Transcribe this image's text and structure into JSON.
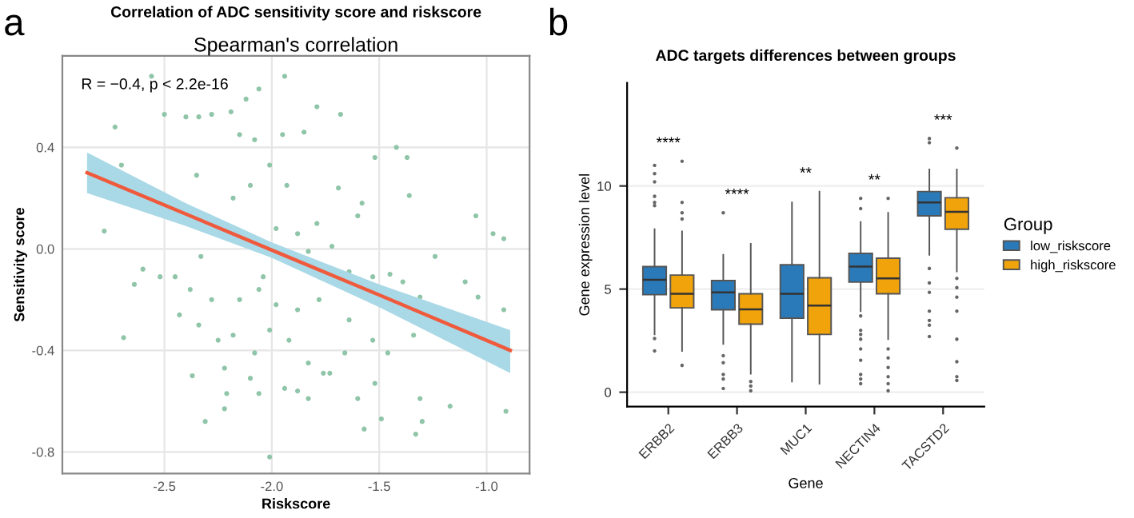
{
  "chart_data": [
    {
      "type": "scatter",
      "title": "Correlation of ADC sensitivity score and riskscore",
      "subtitle": "Spearman's correlation",
      "xlabel": "Riskscore",
      "ylabel": "Sensitivity score",
      "annotations": [
        "a",
        "R = −0.4, p < 2.2e-16"
      ],
      "xlim": [
        -2.975,
        -0.8
      ],
      "ylim": [
        -0.885,
        0.76
      ],
      "xticks": [
        -2.5,
        {
          "value": -2.0,
          "label": "-2.0"
        },
        -1.5,
        {
          "value": -1.0,
          "label": "-1.0"
        }
      ],
      "yticks": [
        -0.8,
        -0.4,
        {
          "value": 0.0,
          "label": "0.0"
        },
        0.4
      ],
      "grid": true,
      "series": [
        {
          "type": "scatter",
          "marker": "circle",
          "color": "#8fc5a8",
          "x": [
            -2.56,
            -1.94,
            -2.06,
            -2.12,
            -2.73,
            -2.5,
            -2.4,
            -2.34,
            -2.28,
            -2.19,
            -1.79,
            -1.68,
            -1.95,
            -1.85,
            -1.42,
            -1.37,
            -1.52,
            -2.7,
            -2.35,
            -2.18,
            -2.1,
            -2.01,
            -1.93,
            -1.69,
            -1.6,
            -1.36,
            -1.05,
            -0.97,
            -0.92,
            -2.78,
            -1.98,
            -1.88,
            -2.6,
            -2.52,
            -2.64,
            -2.45,
            -2.38,
            -2.28,
            -2.15,
            -2.06,
            -1.98,
            -1.88,
            -1.78,
            -1.64,
            -1.53,
            -1.45,
            -1.39,
            -1.31,
            -1.24,
            -1.1,
            -1.04,
            -0.92,
            -2.69,
            -2.43,
            -2.34,
            -2.25,
            -2.18,
            -2.08,
            -2.01,
            -1.92,
            -1.83,
            -1.73,
            -1.66,
            -1.53,
            -1.46,
            -1.34,
            -2.37,
            -2.22,
            -2.1,
            -1.94,
            -1.88,
            -1.83,
            -1.76,
            -1.6,
            -1.52,
            -1.31,
            -1.17,
            -0.91,
            -2.31,
            -2.21,
            -2.06,
            -1.57,
            -1.49,
            -1.33,
            -1.3,
            -2.01,
            -2.22,
            -1.64,
            -1.72,
            -1.83,
            -2.04,
            -2.33,
            -2.08,
            -2.15,
            -1.58,
            -1.79
          ],
          "values": [
            0.68,
            0.68,
            0.63,
            0.59,
            0.48,
            0.53,
            0.52,
            0.52,
            0.53,
            0.54,
            0.56,
            0.53,
            0.45,
            0.46,
            0.4,
            0.36,
            0.36,
            0.33,
            0.29,
            0.2,
            0.25,
            0.33,
            0.25,
            0.24,
            0.13,
            0.21,
            0.13,
            0.06,
            0.04,
            0.07,
            0.08,
            0.06,
            -0.08,
            -0.11,
            -0.14,
            -0.11,
            -0.16,
            -0.2,
            -0.2,
            -0.16,
            -0.22,
            -0.24,
            -0.2,
            -0.09,
            -0.11,
            -0.1,
            -0.13,
            -0.19,
            -0.03,
            -0.13,
            -0.19,
            -0.24,
            -0.35,
            -0.26,
            -0.3,
            -0.36,
            -0.34,
            -0.41,
            -0.32,
            -0.36,
            -0.45,
            -0.49,
            -0.41,
            -0.36,
            -0.41,
            -0.34,
            -0.5,
            -0.47,
            -0.51,
            -0.55,
            -0.56,
            -0.59,
            -0.49,
            -0.59,
            -0.53,
            -0.59,
            -0.62,
            -0.64,
            -0.68,
            -0.57,
            -0.57,
            -0.71,
            -0.67,
            -0.73,
            -0.68,
            -0.82,
            -0.63,
            -0.28,
            0.01,
            -0.01,
            -0.11,
            -0.03,
            0.43,
            0.45,
            0.18,
            0.1
          ]
        },
        {
          "type": "line",
          "color": "#f05a3c",
          "x": [
            -2.86,
            -2.4,
            -2.0,
            -1.5,
            -0.89
          ],
          "values": [
            0.3,
            0.137,
            -0.005,
            -0.182,
            -0.4
          ],
          "lower": [
            0.22,
            0.09,
            -0.035,
            -0.23,
            -0.49
          ],
          "upper": [
            0.38,
            0.18,
            0.025,
            -0.14,
            -0.32
          ]
        }
      ]
    },
    {
      "type": "box",
      "title": "ADC targets differences between groups",
      "xlabel": "Gene",
      "ylabel": "Gene expression level",
      "legend_title": "Group",
      "legend": "right",
      "grid": "y",
      "categories": [
        "ERBB2",
        "ERBB3",
        "MUC1",
        "NECTIN4",
        "TACSTD2"
      ],
      "ylim": [
        -0.7,
        15
      ],
      "yticks": [
        0,
        5,
        10
      ],
      "annotations": [
        "b",
        "****",
        "****",
        "**",
        "**",
        "***"
      ],
      "series": [
        {
          "name": "low_riskscore",
          "color": "#2a7ab9",
          "boxes": [
            {
              "low": 2.8,
              "q1": 4.73,
              "median": 5.45,
              "q3": 6.09,
              "high": 7.9,
              "outliers": [
                2.0,
                2.6,
                9.05,
                9.2,
                9.5,
                10.2,
                10.6,
                11.0
              ]
            },
            {
              "low": 2.34,
              "q1": 4.0,
              "median": 4.84,
              "q3": 5.41,
              "high": 6.66,
              "outliers": [
                0.18,
                0.64,
                0.86,
                1.43,
                1.77,
                8.7
              ]
            },
            {
              "low": 0.52,
              "q1": 3.59,
              "median": 4.77,
              "q3": 6.18,
              "high": 9.2
            },
            {
              "low": 3.93,
              "q1": 5.34,
              "median": 6.09,
              "q3": 6.73,
              "high": 8.25,
              "outliers": [
                0.41,
                0.64,
                0.86,
                1.55,
                2.1,
                2.57,
                2.8,
                3.0,
                3.7,
                8.9,
                9.4
              ]
            },
            {
              "low": 6.66,
              "q1": 8.55,
              "median": 9.2,
              "q3": 9.73,
              "high": 10.8,
              "outliers": [
                2.7,
                3.25,
                3.48,
                3.93,
                4.84,
                5.3,
                6.0,
                12.1,
                12.3
              ]
            }
          ]
        },
        {
          "name": "high_riskscore",
          "color": "#f0a30a",
          "boxes": [
            {
              "low": 2.0,
              "q1": 4.09,
              "median": 4.77,
              "q3": 5.68,
              "high": 7.8,
              "outliers": [
                1.3,
                8.4,
                8.7,
                9.2,
                11.2
              ]
            },
            {
              "low": 0.9,
              "q1": 3.3,
              "median": 4.02,
              "q3": 4.77,
              "high": 7.2,
              "outliers": [
                0.07,
                0.3,
                0.52
              ]
            },
            {
              "low": 0.41,
              "q1": 2.8,
              "median": 4.2,
              "q3": 5.55,
              "high": 9.73
            },
            {
              "low": 2.57,
              "q1": 4.77,
              "median": 5.52,
              "q3": 6.5,
              "high": 8.7,
              "outliers": [
                0.07,
                0.41,
                0.75,
                1.2,
                1.66,
                2.1,
                9.4
              ]
            },
            {
              "low": 5.86,
              "q1": 7.9,
              "median": 8.75,
              "q3": 9.43,
              "high": 10.8,
              "outliers": [
                0.57,
                0.75,
                1.48,
                2.57,
                3.93,
                4.61,
                5.07,
                5.52,
                11.84
              ]
            }
          ]
        }
      ]
    }
  ]
}
